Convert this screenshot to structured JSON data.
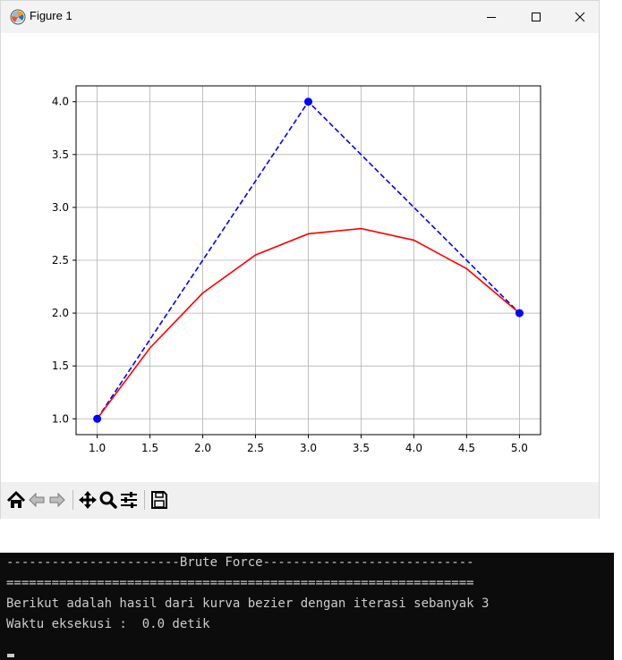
{
  "window": {
    "title": "Figure 1",
    "controls": [
      "minimize-icon",
      "maximize-icon",
      "close-icon"
    ]
  },
  "toolbar": {
    "tools": [
      "home-icon",
      "back-icon",
      "forward-icon",
      "pan-icon",
      "zoom-icon",
      "configure-subplots-icon",
      "save-icon"
    ]
  },
  "chart_data": {
    "type": "line",
    "title": "",
    "xlabel": "",
    "ylabel": "",
    "xlim": [
      0.8,
      5.2
    ],
    "ylim": [
      0.85,
      4.15
    ],
    "xticks": [
      1.0,
      1.5,
      2.0,
      2.5,
      3.0,
      3.5,
      4.0,
      4.5,
      5.0
    ],
    "xtick_labels": [
      "1.0",
      "1.5",
      "2.0",
      "2.5",
      "3.0",
      "3.5",
      "4.0",
      "4.5",
      "5.0"
    ],
    "yticks": [
      1.0,
      1.5,
      2.0,
      2.5,
      3.0,
      3.5,
      4.0
    ],
    "ytick_labels": [
      "1.0",
      "1.5",
      "2.0",
      "2.5",
      "3.0",
      "3.5",
      "4.0"
    ],
    "grid": true,
    "series": [
      {
        "style": "dashed-line-with-markers",
        "color": "#0000ff",
        "x": [
          1.0,
          3.0,
          5.0
        ],
        "y": [
          1.0,
          4.0,
          2.0
        ]
      },
      {
        "style": "solid-line",
        "color": "#ff0000",
        "x": [
          1.0,
          1.5,
          2.0,
          2.5,
          3.0,
          3.5,
          4.0,
          4.5,
          5.0
        ],
        "y": [
          1.0,
          1.67,
          2.19,
          2.55,
          2.75,
          2.8,
          2.69,
          2.42,
          2.0
        ]
      }
    ]
  },
  "terminal": {
    "lines": [
      "-----------------------Brute Force----------------------------",
      "==============================================================",
      "Berikut adalah hasil dari kurva bezier dengan iterasi sebanyak 3",
      "Waktu eksekusi :  0.0 detik"
    ]
  }
}
